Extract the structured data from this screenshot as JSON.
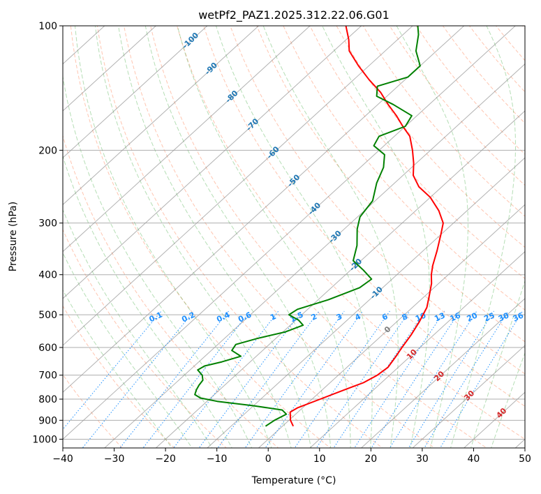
{
  "chart_data": {
    "type": "line",
    "chart_kind": "skew-T log-P diagram",
    "title": "wetPf2_PAZ1.2025.312.22.06.G01",
    "xlabel": "Temperature (°C)",
    "ylabel": "Pressure (hPa)",
    "xlim": [
      -40,
      50
    ],
    "ylim": [
      1050,
      100
    ],
    "y_scale": "log",
    "grid": true,
    "x_ticks": [
      -40,
      -30,
      -20,
      -10,
      0,
      10,
      20,
      30,
      40,
      50
    ],
    "y_ticks": [
      1000,
      900,
      800,
      700,
      600,
      500,
      400,
      300,
      200,
      100
    ],
    "skewed_isotherm_labels": [
      -100,
      -90,
      -80,
      -70,
      -60,
      -50,
      -40,
      -30,
      -20,
      -10,
      0,
      10,
      20,
      30,
      40
    ],
    "mixing_ratio_labels": [
      "0.1",
      "0.2",
      "0.4",
      "0.6",
      "1",
      "1.5",
      "2",
      "3",
      "4",
      "6",
      "8",
      "10",
      "13",
      "16",
      "20",
      "25",
      "30",
      "36"
    ],
    "background_lines": {
      "isotherms": "gray",
      "dry_adiabats": "red dashed",
      "moist_adiabats": "green dashed",
      "mixing_ratio": "blue dotted"
    },
    "series": [
      {
        "color": "#ff0000",
        "points": [
          {
            "p": 930,
            "t": 2.1
          },
          {
            "p": 900,
            "t": 0.3
          },
          {
            "p": 860,
            "t": -1.5
          },
          {
            "p": 840,
            "t": -1.0
          },
          {
            "p": 800,
            "t": 1.6
          },
          {
            "p": 760,
            "t": 4.3
          },
          {
            "p": 730,
            "t": 6.5
          },
          {
            "p": 700,
            "t": 7.6
          },
          {
            "p": 670,
            "t": 8.0
          },
          {
            "p": 630,
            "t": 7.2
          },
          {
            "p": 600,
            "t": 6.5
          },
          {
            "p": 560,
            "t": 5.6
          },
          {
            "p": 520,
            "t": 4.4
          },
          {
            "p": 480,
            "t": 2.8
          },
          {
            "p": 450,
            "t": 0.8
          },
          {
            "p": 420,
            "t": -1.4
          },
          {
            "p": 400,
            "t": -3.3
          },
          {
            "p": 380,
            "t": -5.0
          },
          {
            "p": 350,
            "t": -7.3
          },
          {
            "p": 320,
            "t": -10.0
          },
          {
            "p": 300,
            "t": -12.0
          },
          {
            "p": 280,
            "t": -15.5
          },
          {
            "p": 260,
            "t": -20.0
          },
          {
            "p": 245,
            "t": -24.5
          },
          {
            "p": 230,
            "t": -28.0
          },
          {
            "p": 215,
            "t": -30.5
          },
          {
            "p": 200,
            "t": -33.5
          },
          {
            "p": 185,
            "t": -37.0
          },
          {
            "p": 175,
            "t": -40.5
          },
          {
            "p": 165,
            "t": -44.0
          },
          {
            "p": 155,
            "t": -48.0
          },
          {
            "p": 145,
            "t": -52.0
          },
          {
            "p": 135,
            "t": -57.0
          },
          {
            "p": 125,
            "t": -62.0
          },
          {
            "p": 115,
            "t": -67.0
          },
          {
            "p": 108,
            "t": -69.5
          },
          {
            "p": 100,
            "t": -73.0
          }
        ]
      },
      {
        "color": "#008000",
        "points": [
          {
            "p": 930,
            "t": -3.3
          },
          {
            "p": 900,
            "t": -2.8
          },
          {
            "p": 870,
            "t": -1.8
          },
          {
            "p": 850,
            "t": -3.5
          },
          {
            "p": 830,
            "t": -10.0
          },
          {
            "p": 810,
            "t": -18.0
          },
          {
            "p": 795,
            "t": -22.0
          },
          {
            "p": 780,
            "t": -23.8
          },
          {
            "p": 760,
            "t": -24.5
          },
          {
            "p": 740,
            "t": -25.0
          },
          {
            "p": 720,
            "t": -25.3
          },
          {
            "p": 700,
            "t": -26.5
          },
          {
            "p": 680,
            "t": -28.5
          },
          {
            "p": 665,
            "t": -28.0
          },
          {
            "p": 650,
            "t": -25.5
          },
          {
            "p": 630,
            "t": -23.0
          },
          {
            "p": 610,
            "t": -26.0
          },
          {
            "p": 590,
            "t": -26.5
          },
          {
            "p": 570,
            "t": -23.5
          },
          {
            "p": 550,
            "t": -19.5
          },
          {
            "p": 530,
            "t": -17.5
          },
          {
            "p": 515,
            "t": -19.5
          },
          {
            "p": 500,
            "t": -22.5
          },
          {
            "p": 485,
            "t": -22.0
          },
          {
            "p": 460,
            "t": -18.0
          },
          {
            "p": 430,
            "t": -14.5
          },
          {
            "p": 410,
            "t": -14.0
          },
          {
            "p": 390,
            "t": -17.5
          },
          {
            "p": 370,
            "t": -21.5
          },
          {
            "p": 340,
            "t": -24.0
          },
          {
            "p": 310,
            "t": -27.5
          },
          {
            "p": 290,
            "t": -29.5
          },
          {
            "p": 265,
            "t": -30.5
          },
          {
            "p": 240,
            "t": -33.5
          },
          {
            "p": 220,
            "t": -35.5
          },
          {
            "p": 205,
            "t": -38.0
          },
          {
            "p": 195,
            "t": -42.0
          },
          {
            "p": 185,
            "t": -43.0
          },
          {
            "p": 175,
            "t": -40.0
          },
          {
            "p": 165,
            "t": -41.0
          },
          {
            "p": 155,
            "t": -47.0
          },
          {
            "p": 148,
            "t": -52.0
          },
          {
            "p": 140,
            "t": -54.0
          },
          {
            "p": 133,
            "t": -50.0
          },
          {
            "p": 125,
            "t": -50.0
          },
          {
            "p": 115,
            "t": -54.0
          },
          {
            "p": 105,
            "t": -57.0
          },
          {
            "p": 100,
            "t": -59.0
          }
        ]
      }
    ]
  }
}
